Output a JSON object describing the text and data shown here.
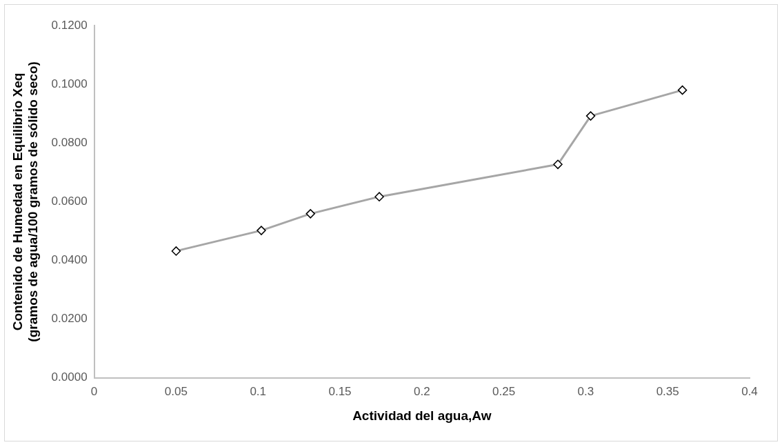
{
  "chart_data": {
    "type": "line",
    "xlabel": "Actividad del agua,Aw",
    "ylabel": "Contenido de Humedad en Equilibrio Xeq\n(gramos de agua/100 gramos de sólido seco)",
    "x": [
      0.05,
      0.102,
      0.132,
      0.174,
      0.283,
      0.303,
      0.359
    ],
    "series": [
      {
        "color": "#a6a6a6",
        "values": [
          0.0432,
          0.0502,
          0.0559,
          0.0617,
          0.0727,
          0.0892,
          0.098
        ]
      }
    ],
    "xlim": [
      0,
      0.4
    ],
    "xticks": [
      0,
      0.05,
      0.1,
      0.15,
      0.2,
      0.25,
      0.3,
      0.35,
      0.4
    ],
    "ylim": [
      0,
      0.12
    ],
    "yticks": [
      {
        "value": 0,
        "label": "0.0000"
      },
      {
        "value": 0.02,
        "label": "0.0200"
      },
      {
        "value": 0.04,
        "label": "0.0400"
      },
      {
        "value": 0.06,
        "label": "0.0600"
      },
      {
        "value": 0.08,
        "label": "0.0800"
      },
      {
        "value": 0.1,
        "label": "0.1000"
      },
      {
        "value": 0.12,
        "label": "0.1200"
      }
    ],
    "grid": false,
    "legend": false,
    "marker": "diamond",
    "line_style": "solid"
  }
}
